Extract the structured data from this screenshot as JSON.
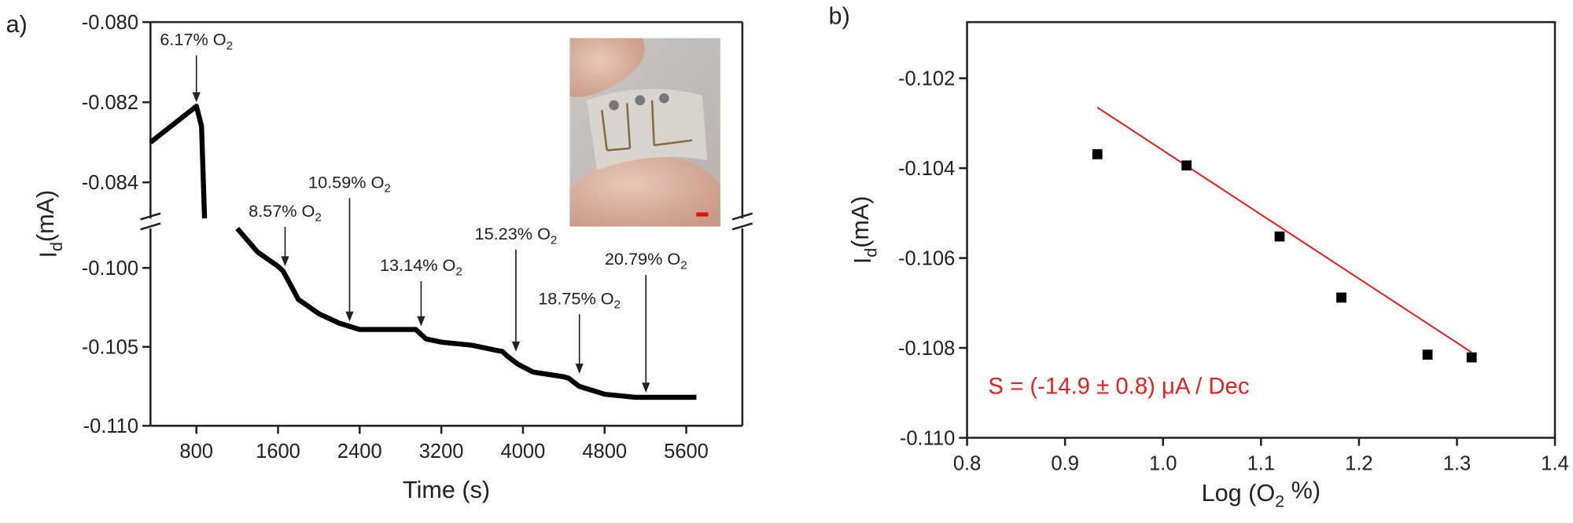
{
  "chart_data": [
    {
      "type": "line",
      "panel_label": "a)",
      "xlabel": "Time (s)",
      "ylabel": {
        "main": "I",
        "sub": "d",
        "unit": "(mA)"
      },
      "x": [
        350,
        500,
        650,
        750,
        800,
        850,
        880,
        1040,
        1200,
        1400,
        1600,
        1650,
        1700,
        1800,
        2000,
        2200,
        2400,
        2800,
        2950,
        3050,
        3200,
        3500,
        3800,
        3850,
        3950,
        4100,
        4400,
        4450,
        4550,
        4800,
        5100,
        5700
      ],
      "series": [
        {
          "color": "#000000",
          "values": [
            -0.083,
            -0.0827,
            -0.0824,
            -0.0822,
            -0.0821,
            -0.0826,
            -0.0849,
            null,
            -0.0975,
            -0.099,
            -0.0999,
            -0.1002,
            -0.1008,
            -0.102,
            -0.1029,
            -0.1035,
            -0.1039,
            -0.1039,
            -0.1039,
            -0.1045,
            -0.1047,
            -0.1049,
            -0.1053,
            -0.1056,
            -0.1061,
            -0.1066,
            -0.1069,
            -0.107,
            -0.1075,
            -0.108,
            -0.1082,
            -0.1082
          ]
        }
      ],
      "xlim": [
        350,
        6150
      ],
      "xticks": [
        800,
        1600,
        2400,
        3200,
        4000,
        4800,
        5600
      ],
      "y_segments": [
        {
          "ylim": [
            -0.0849,
            -0.08
          ],
          "yticks": [
            {
              "value": -0.08,
              "label": "-0.080"
            },
            {
              "value": -0.082,
              "label": "-0.082"
            },
            {
              "value": -0.084,
              "label": "-0.084"
            }
          ]
        },
        {
          "ylim": [
            -0.11,
            -0.0975
          ],
          "yticks": [
            {
              "value": -0.1,
              "label": "-0.100"
            },
            {
              "value": -0.105,
              "label": "-0.105"
            },
            {
              "value": -0.11,
              "label": "-0.110"
            }
          ]
        }
      ],
      "annotations": [
        {
          "text": "6.17% O",
          "sub": "2",
          "x": 800,
          "y": -0.082,
          "text_y": -0.08058
        },
        {
          "text": "8.57% O",
          "sub": "2",
          "x": 1669,
          "y": -0.0999,
          "text_y": -0.09677
        },
        {
          "text": "10.59% O",
          "sub": "2",
          "x": 2301,
          "y": -0.1034,
          "text_y": -0.09494
        },
        {
          "text": "13.14% O",
          "sub": "2",
          "x": 3002,
          "y": -0.1037,
          "text_y": -0.1002
        },
        {
          "text": "15.23% O",
          "sub": "2",
          "x": 3931,
          "y": -0.1053,
          "text_y": -0.0982
        },
        {
          "text": "18.75% O",
          "sub": "2",
          "x": 4553,
          "y": -0.1067,
          "text_y": -0.1023
        },
        {
          "text": "20.79% O",
          "sub": "2",
          "x": 5205,
          "y": -0.1079,
          "text_y": -0.0998
        }
      ]
    },
    {
      "type": "scatter",
      "panel_label": "b)",
      "xlabel": {
        "main": "Log (O",
        "sub": "2",
        "unit": " %)"
      },
      "ylabel": {
        "main": "I",
        "sub": "d",
        "unit": "(mA)"
      },
      "x": [
        0.933,
        1.024,
        1.119,
        1.182,
        1.27,
        1.315
      ],
      "series": [
        {
          "color": "#000000",
          "values": [
            -0.10369,
            -0.10394,
            -0.10552,
            -0.10688,
            -0.10815,
            -0.10821
          ]
        }
      ],
      "fit": {
        "color": "#e02424",
        "x": [
          0.933,
          1.315
        ],
        "values": [
          -0.10265,
          -0.1081
        ]
      },
      "annotation": {
        "text": "S = (-14.9 ± 0.8) μA / Dec",
        "color": "#e02424",
        "x": 0.8215,
        "y": -0.10902
      },
      "xlim": [
        0.8,
        1.4
      ],
      "xticks": [
        0.8,
        0.9,
        {
          "value": 1,
          "label": "1.0"
        },
        1.1,
        1.2,
        1.3,
        1.4
      ],
      "ylim": [
        -0.11,
        -0.10075
      ],
      "yticks": [
        {
          "value": -0.11,
          "label": "-0.110"
        },
        -0.108,
        -0.106,
        -0.104,
        -0.102
      ]
    }
  ]
}
